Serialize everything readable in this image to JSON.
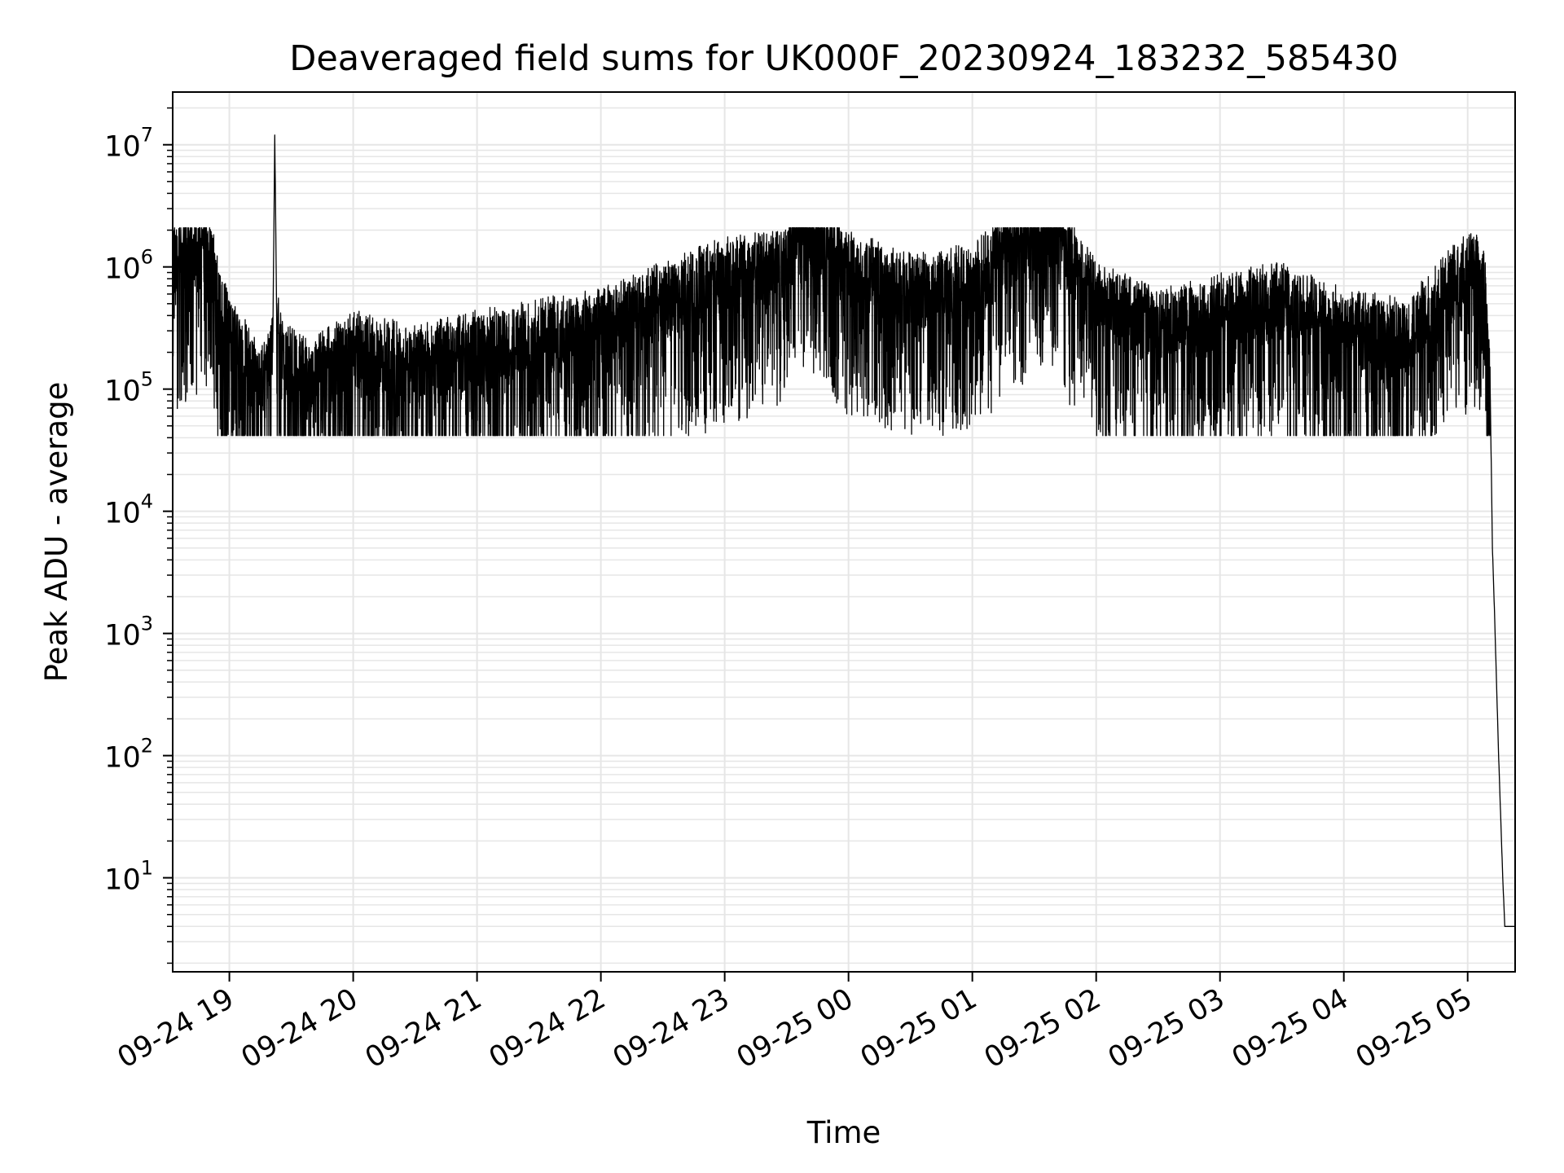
{
  "chart_data": {
    "type": "line",
    "title": "Deaveraged field sums for UK000F_20230924_183232_585430",
    "xlabel": "Time",
    "ylabel": "Peak ADU - average",
    "yscale": "log",
    "ylim": [
      1.7,
      27000000
    ],
    "xlim": [
      "2023-09-24T18:32:32",
      "2023-09-25T05:23:00"
    ],
    "grid": true,
    "line_color": "#000000",
    "grid_color": "#e6e6e6",
    "x_tick_labels": [
      "09-24 19",
      "09-24 20",
      "09-24 21",
      "09-24 22",
      "09-24 23",
      "09-25 00",
      "09-25 01",
      "09-25 02",
      "09-25 03",
      "09-25 04",
      "09-25 05"
    ],
    "x_tick_values": [
      "2023-09-24T19:00:00",
      "2023-09-24T20:00:00",
      "2023-09-24T21:00:00",
      "2023-09-24T22:00:00",
      "2023-09-24T23:00:00",
      "2023-09-25T00:00:00",
      "2023-09-25T01:00:00",
      "2023-09-25T02:00:00",
      "2023-09-25T03:00:00",
      "2023-09-25T04:00:00",
      "2023-09-25T05:00:00"
    ],
    "y_tick_values": [
      10,
      100,
      1000,
      10000,
      100000,
      1000000,
      10000000
    ],
    "y_tick_labels": [
      {
        "base": "10",
        "exp": "1"
      },
      {
        "base": "10",
        "exp": "2"
      },
      {
        "base": "10",
        "exp": "3"
      },
      {
        "base": "10",
        "exp": "4"
      },
      {
        "base": "10",
        "exp": "5"
      },
      {
        "base": "10",
        "exp": "6"
      },
      {
        "base": "10",
        "exp": "7"
      }
    ],
    "series": [
      {
        "x": [
          "2023-09-24T18:32:32",
          "2023-09-24T18:38:00",
          "2023-09-24T18:44:00",
          "2023-09-24T18:50:00",
          "2023-09-24T18:56:00",
          "2023-09-24T19:05:00",
          "2023-09-24T19:15:00",
          "2023-09-24T19:21:00",
          "2023-09-24T19:22:00",
          "2023-09-24T19:23:00",
          "2023-09-24T19:28:00",
          "2023-09-24T19:40:00",
          "2023-09-24T20:00:00",
          "2023-09-24T20:30:00",
          "2023-09-24T21:00:00",
          "2023-09-24T21:30:00",
          "2023-09-24T22:00:00",
          "2023-09-24T22:30:00",
          "2023-09-24T23:00:00",
          "2023-09-24T23:30:00",
          "2023-09-24T23:37:00",
          "2023-09-25T00:00:00",
          "2023-09-25T00:30:00",
          "2023-09-25T01:00:00",
          "2023-09-25T01:36:00",
          "2023-09-25T02:00:00",
          "2023-09-25T02:30:00",
          "2023-09-25T03:00:00",
          "2023-09-25T03:30:00",
          "2023-09-25T04:00:00",
          "2023-09-25T04:30:00",
          "2023-09-25T04:50:00",
          "2023-09-25T05:03:00",
          "2023-09-25T05:08:00",
          "2023-09-25T05:11:00",
          "2023-09-25T05:12:00",
          "2023-09-25T05:13:00",
          "2023-09-25T05:15:00",
          "2023-09-25T05:17:00",
          "2023-09-25T05:18:00",
          "2023-09-25T05:20:00",
          "2023-09-25T05:23:00"
        ],
        "y": [
          1000000,
          1200000,
          1300000,
          1400000,
          400000,
          200000,
          100000,
          200000,
          12000000,
          300000,
          150000,
          120000,
          200000,
          150000,
          200000,
          250000,
          300000,
          500000,
          800000,
          1000000,
          2500000,
          900000,
          600000,
          700000,
          2500000,
          500000,
          300000,
          400000,
          500000,
          300000,
          250000,
          600000,
          1000000,
          700000,
          80000,
          5000,
          1500,
          100,
          10,
          4,
          4,
          4
        ]
      }
    ]
  }
}
